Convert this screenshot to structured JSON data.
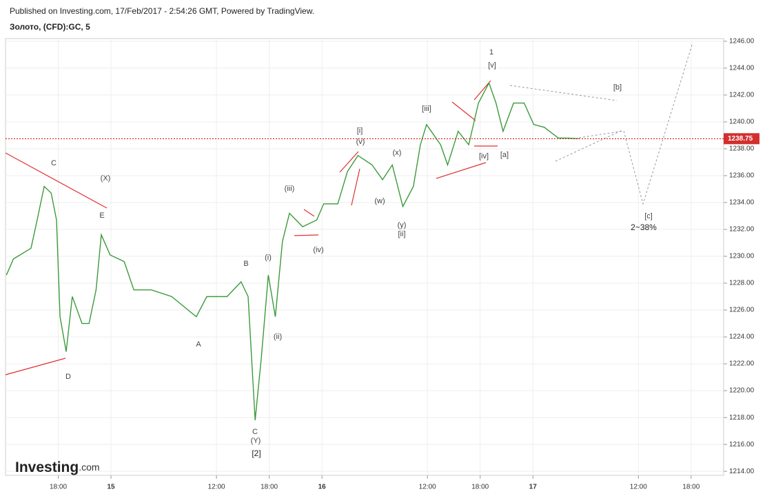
{
  "header": {
    "published": "Published on Investing.com, 17/Feb/2017 - 2:54:26 GMT, Powered by TradingView.",
    "symbol": "Золото, (CFD):GC, 5"
  },
  "logo": {
    "brand": "Investing",
    "suffix": ".com"
  },
  "chart_data": {
    "type": "line",
    "x": [
      12.1,
      12.9,
      14.9,
      15.6,
      16.4,
      17.2,
      17.8,
      18.2,
      18.9,
      19.6,
      20.7,
      21.5,
      22.3,
      22.9,
      23.9,
      25.5,
      26.6,
      28.6,
      30.9,
      33.7,
      34.9,
      37.2,
      38.8,
      39.6,
      40.4,
      41.1,
      41.9,
      42.7,
      43.5,
      44.3,
      45.8,
      47.4,
      48.2,
      49.8,
      50.9,
      52.1,
      53.7,
      54.9,
      56.0,
      57.2,
      58.4,
      59.2,
      59.9,
      61.5,
      62.3,
      63.5,
      64.7,
      65.8,
      67.0,
      67.8,
      68.6,
      69.8,
      71.0,
      72.1,
      73.3,
      74.9,
      76.0,
      77.2
    ],
    "series": [
      {
        "name": "GC",
        "color": "#3a9a3a",
        "values": [
          1228.6,
          1229.8,
          1230.6,
          1232.7,
          1235.2,
          1234.7,
          1232.7,
          1225.5,
          1222.9,
          1227.0,
          1225.0,
          1225.0,
          1227.5,
          1231.6,
          1230.1,
          1229.6,
          1227.5,
          1227.5,
          1227.0,
          1225.5,
          1227.0,
          1227.0,
          1228.1,
          1227.0,
          1217.8,
          1222.4,
          1228.6,
          1225.5,
          1231.1,
          1233.2,
          1232.2,
          1232.7,
          1233.9,
          1233.9,
          1236.3,
          1237.5,
          1236.8,
          1235.7,
          1236.8,
          1233.7,
          1235.2,
          1238.3,
          1239.8,
          1238.3,
          1236.8,
          1239.3,
          1238.3,
          1241.4,
          1242.9,
          1241.4,
          1239.3,
          1241.4,
          1241.4,
          1239.8,
          1239.6,
          1238.8,
          1238.8,
          1238.75
        ]
      }
    ],
    "xlim": [
      12,
      93.7
    ],
    "xticks": [
      {
        "value": 18,
        "label": "18:00"
      },
      {
        "value": 24,
        "label": "15"
      },
      {
        "value": 36,
        "label": "12:00"
      },
      {
        "value": 42,
        "label": "18:00"
      },
      {
        "value": 48,
        "label": "16"
      },
      {
        "value": 60,
        "label": "12:00"
      },
      {
        "value": 66,
        "label": "18:00"
      },
      {
        "value": 72,
        "label": "17"
      },
      {
        "value": 84,
        "label": "12:00"
      },
      {
        "value": 90,
        "label": "18:00"
      }
    ],
    "ylim": [
      1213.7,
      1246.2
    ],
    "yticks": [
      {
        "value": 1214,
        "label": "1214.00"
      },
      {
        "value": 1216,
        "label": "1216.00"
      },
      {
        "value": 1218,
        "label": "1218.00"
      },
      {
        "value": 1220,
        "label": "1220.00"
      },
      {
        "value": 1222,
        "label": "1222.00"
      },
      {
        "value": 1224,
        "label": "1224.00"
      },
      {
        "value": 1226,
        "label": "1226.00"
      },
      {
        "value": 1228,
        "label": "1228.00"
      },
      {
        "value": 1230,
        "label": "1230.00"
      },
      {
        "value": 1232,
        "label": "1232.00"
      },
      {
        "value": 1234,
        "label": "1234.00"
      },
      {
        "value": 1236,
        "label": "1236.00"
      },
      {
        "value": 1238,
        "label": "1238.00"
      },
      {
        "value": 1240,
        "label": "1240.00"
      },
      {
        "value": 1242,
        "label": "1242.00"
      },
      {
        "value": 1244,
        "label": "1244.00"
      },
      {
        "value": 1246,
        "label": "1246.00"
      }
    ],
    "grid": true,
    "last_price": 1238.75,
    "annotations": [
      "C",
      "(X)",
      "E",
      "D",
      "A",
      "B",
      "C",
      "(Y)",
      "[2]",
      "(i)",
      "(ii)",
      "(iii)",
      "(iv)",
      "[i]",
      "(v)",
      "(w)",
      "(x)",
      "(y)",
      "[ii]",
      "[iii]",
      "[iv]",
      "1",
      "[v]",
      "[a]",
      "[b]",
      "[c]",
      "2~38%"
    ]
  }
}
